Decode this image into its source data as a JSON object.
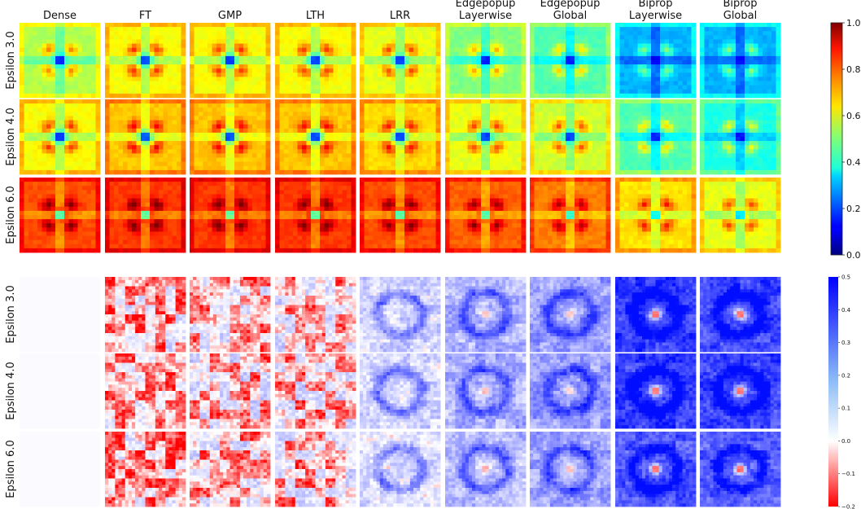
{
  "chart_data": [
    {
      "type": "heatmap",
      "title": "",
      "columns": [
        "Dense",
        "FT",
        "GMP",
        "LTH",
        "LRR",
        "Edgepopup\nLayerwise",
        "Edgepopup\nGlobal",
        "Biprop\nLayerwise",
        "Biprop\nGlobal"
      ],
      "rows": [
        "Epsilon 3.0",
        "Epsilon 4.0",
        "Epsilon 6.0"
      ],
      "colormap": "jet",
      "vlim": [
        0.0,
        1.0
      ],
      "colorbar_ticks": [
        "0.0",
        "0.2",
        "0.4",
        "0.6",
        "0.8",
        "1.0"
      ],
      "approx_outer_level": [
        [
          0.55,
          0.62,
          0.62,
          0.62,
          0.6,
          0.5,
          0.45,
          0.3,
          0.3
        ],
        [
          0.62,
          0.68,
          0.68,
          0.68,
          0.66,
          0.6,
          0.58,
          0.45,
          0.4
        ],
        [
          0.8,
          0.82,
          0.82,
          0.82,
          0.8,
          0.78,
          0.75,
          0.65,
          0.6
        ]
      ]
    },
    {
      "type": "heatmap",
      "title": "",
      "columns": [
        "Dense",
        "FT",
        "GMP",
        "LTH",
        "LRR",
        "Edgepopup\nLayerwise",
        "Edgepopup\nGlobal",
        "Biprop\nLayerwise",
        "Biprop\nGlobal"
      ],
      "rows": [
        "Epsilon 3.0",
        "Epsilon 4.0",
        "Epsilon 6.0"
      ],
      "colormap": "bwr_r",
      "vlim": [
        -0.2,
        0.5
      ],
      "colorbar_ticks": [
        "0.5",
        "0.4",
        "0.3",
        "0.2",
        "0.1",
        "0.0",
        "−0.1",
        "−0.2"
      ],
      "approx_mean_difference": [
        [
          0.0,
          -0.05,
          -0.02,
          -0.03,
          0.08,
          0.15,
          0.2,
          0.4,
          0.38
        ],
        [
          0.0,
          -0.06,
          -0.02,
          -0.02,
          0.08,
          0.16,
          0.2,
          0.4,
          0.38
        ],
        [
          0.0,
          -0.07,
          -0.03,
          -0.02,
          0.06,
          0.14,
          0.18,
          0.35,
          0.33
        ]
      ]
    }
  ]
}
